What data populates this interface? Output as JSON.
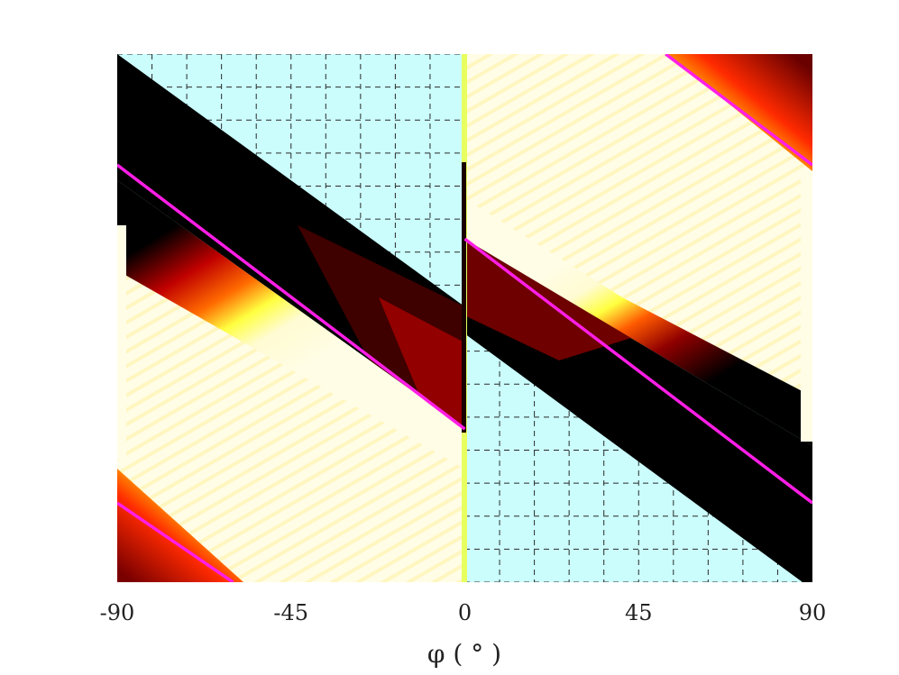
{
  "chart_data": {
    "type": "heatmap",
    "title": "",
    "xlabel": "φ ( ° )",
    "ylabel": "",
    "xlim": [
      -90,
      90
    ],
    "xticks": [
      -90,
      -45,
      0,
      45,
      90
    ],
    "xtick_labels": [
      "-90",
      "-45",
      "0",
      "45",
      "90"
    ],
    "yticks": [],
    "grid": "dashed, shown only in empty (cyan) regions",
    "colormap": "hot",
    "colors": {
      "empty_region": "#cbfdfd",
      "grid_line": "#2a2a2a",
      "overlay_line": "#ff1ee6",
      "ink": "#222222"
    },
    "overlay_lines": [
      {
        "x": [
          -90,
          -60
        ],
        "y": [
          0.15,
          0.0
        ]
      },
      {
        "x": [
          -90,
          0
        ],
        "y": [
          0.79,
          0.29
        ]
      },
      {
        "x": [
          0,
          90
        ],
        "y": [
          0.65,
          0.15
        ]
      },
      {
        "x": [
          52,
          90
        ],
        "y": [
          1.0,
          0.79
        ]
      }
    ]
  }
}
